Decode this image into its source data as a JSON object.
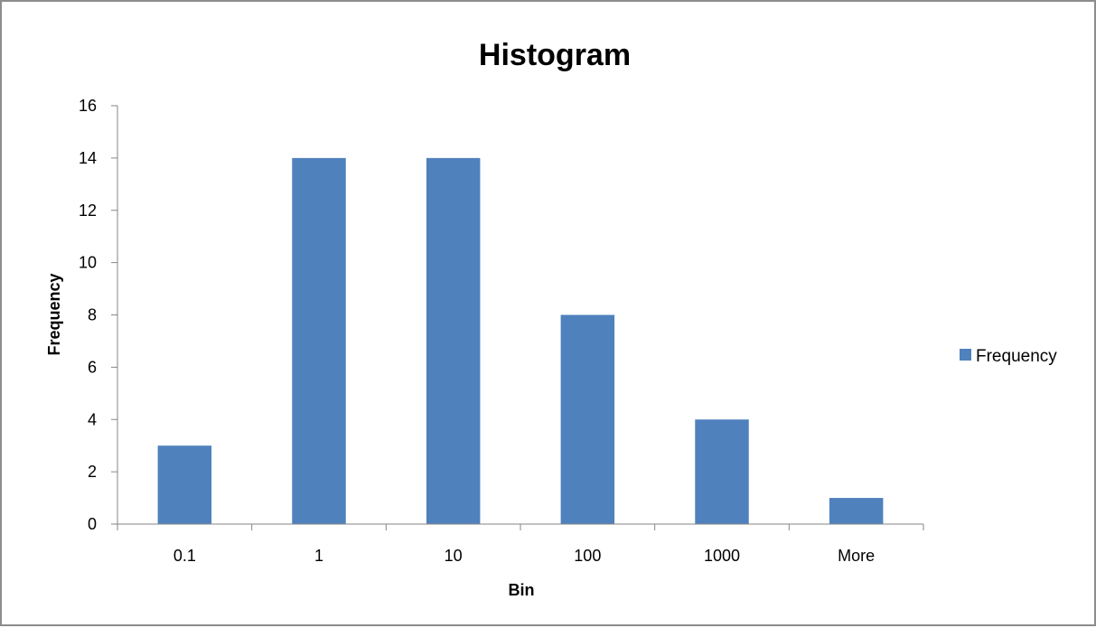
{
  "chart_data": {
    "type": "bar",
    "title": "Histogram",
    "xlabel": "Bin",
    "ylabel": "Frequency",
    "categories": [
      "0.1",
      "1",
      "10",
      "100",
      "1000",
      "More"
    ],
    "series": [
      {
        "name": "Frequency",
        "values": [
          3,
          14,
          14,
          8,
          4,
          1
        ],
        "color": "#4f81bd"
      }
    ],
    "ylim": [
      0,
      16
    ],
    "yticks": [
      "0",
      "2",
      "4",
      "6",
      "8",
      "10",
      "12",
      "14",
      "16"
    ],
    "grid": false,
    "legend_position": "right",
    "colors": {
      "axis": "#868686",
      "frame_border": "#8c8c8c"
    }
  }
}
